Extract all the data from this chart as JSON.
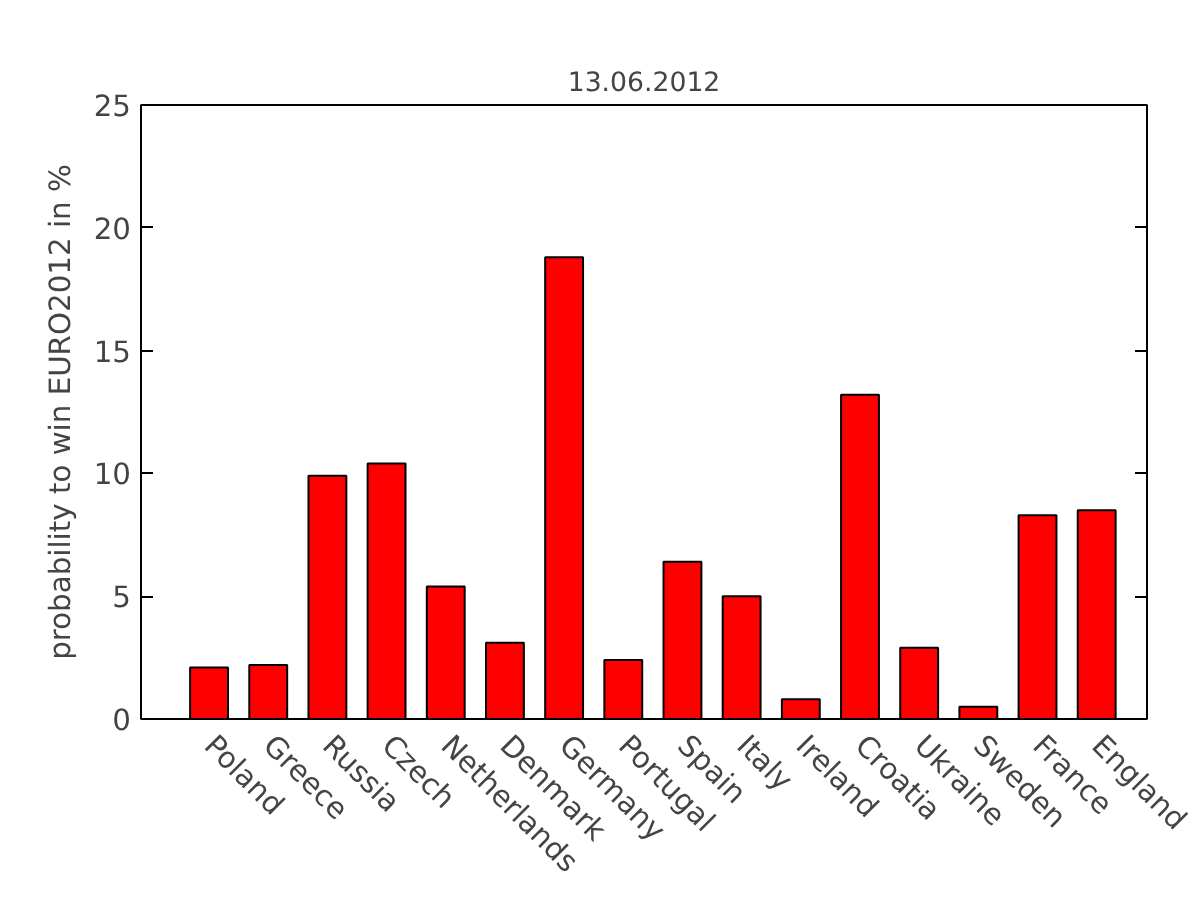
{
  "chart_data": {
    "type": "bar",
    "title": "13.06.2012",
    "ylabel": "probability to win EURO2012 in %",
    "categories": [
      "Poland",
      "Greece",
      "Russia",
      "Czech",
      "Netherlands",
      "Denmark",
      "Germany",
      "Portugal",
      "Spain",
      "Italy",
      "Ireland",
      "Croatia",
      "Ukraine",
      "Sweden",
      "France",
      "England"
    ],
    "values": [
      2.1,
      2.2,
      9.9,
      10.4,
      5.4,
      3.1,
      18.8,
      2.4,
      6.4,
      5.0,
      0.8,
      13.2,
      2.9,
      0.5,
      8.3,
      8.5
    ],
    "color": "#ff0000",
    "ylim": [
      0,
      25
    ],
    "yticks": [
      0,
      5,
      10,
      15,
      20,
      25
    ],
    "grid": false
  }
}
